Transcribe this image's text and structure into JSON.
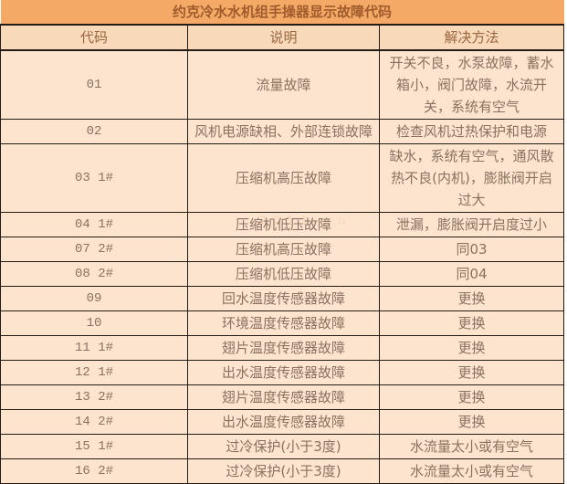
{
  "title": "约克冷水水机组手操器显示故障代码",
  "columns": [
    "代码",
    "说明",
    "解决方法"
  ],
  "rows": [
    {
      "code": "01",
      "desc": "流量故障",
      "fix": "开关不良，水泵故障，蓄水箱小，阀门故障，水流开关，系统有空气",
      "lines": 3
    },
    {
      "code": "02",
      "desc": "风机电源缺相、外部连锁故障",
      "fix": "检查风机过热保护和电源",
      "lines": 1
    },
    {
      "code": "03 1#",
      "desc": "压缩机高压故障",
      "fix": "缺水，系统有空气，通风散热不良(内机)，膨胀阀开启过大",
      "lines": 2
    },
    {
      "code": "04 1#",
      "desc": "压缩机低压故障",
      "fix": "泄漏，膨胀阀开启度过小",
      "lines": 1
    },
    {
      "code": "07 2#",
      "desc": "压缩机高压故障",
      "fix": "同03",
      "lines": 1
    },
    {
      "code": "08 2#",
      "desc": "压缩机低压故障",
      "fix": "同04",
      "lines": 1
    },
    {
      "code": "09",
      "desc": "回水温度传感器故障",
      "fix": "更换",
      "lines": 1
    },
    {
      "code": "10",
      "desc": "环境温度传感器故障",
      "fix": "更换",
      "lines": 1
    },
    {
      "code": "11 1#",
      "desc": "翅片温度传感器故障",
      "fix": "更换",
      "lines": 1
    },
    {
      "code": "12 1#",
      "desc": "出水温度传感器故障",
      "fix": "更换",
      "lines": 1
    },
    {
      "code": "13 2#",
      "desc": "翅片温度传感器故障",
      "fix": "更换",
      "lines": 1
    },
    {
      "code": "14 2#",
      "desc": "出水温度传感器故障",
      "fix": "更换",
      "lines": 1
    },
    {
      "code": "15 1#",
      "desc": "过冷保护(小于3度)",
      "fix": "水流量太小或有空气",
      "lines": 1
    },
    {
      "code": "16 2#",
      "desc": "过冷保护(小于3度)",
      "fix": "水流量太小或有空气",
      "lines": 1
    }
  ],
  "watermark": "2211.cn",
  "colors": {
    "title_bg": "#f5a966",
    "header_bg": "#f8d9ba",
    "row_bg": "#fce4cf",
    "border": "#241c14",
    "text": "#8a7262",
    "title_text": "#a05c2c",
    "header_text": "#996742"
  }
}
